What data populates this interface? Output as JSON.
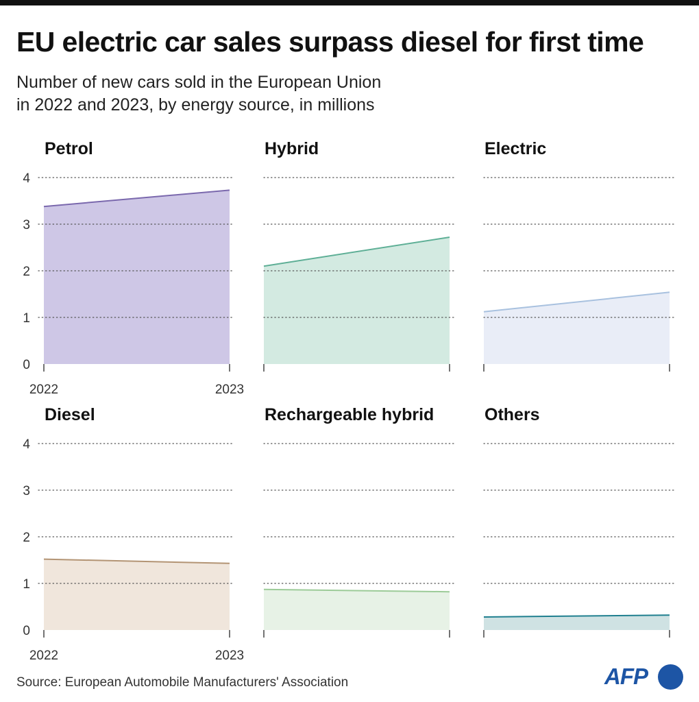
{
  "title": "EU electric car sales surpass diesel for first time",
  "subtitle_line1": "Number of new cars sold in the European Union",
  "subtitle_line2": "in 2022 and 2023, by energy source, in millions",
  "source": "Source: European Automobile Manufacturers' Association",
  "logo_text": "AFP",
  "colors": {
    "accent": "#1d55a5"
  },
  "chart_data": [
    {
      "type": "area",
      "title": "Petrol",
      "x": [
        "2022",
        "2023"
      ],
      "values": [
        3.38,
        3.73
      ],
      "ylim": [
        0,
        4
      ],
      "y_ticks": [
        0,
        1,
        2,
        3,
        4
      ],
      "line_color": "#7a68ad",
      "fill_color": "#cec7e6"
    },
    {
      "type": "area",
      "title": "Hybrid",
      "x": [
        "2022",
        "2023"
      ],
      "values": [
        2.1,
        2.72
      ],
      "ylim": [
        0,
        4
      ],
      "y_ticks": [
        0,
        1,
        2,
        3,
        4
      ],
      "line_color": "#5eaf96",
      "fill_color": "#d3eae1"
    },
    {
      "type": "area",
      "title": "Electric",
      "x": [
        "2022",
        "2023"
      ],
      "values": [
        1.12,
        1.54
      ],
      "ylim": [
        0,
        4
      ],
      "y_ticks": [
        0,
        1,
        2,
        3,
        4
      ],
      "line_color": "#a8c1df",
      "fill_color": "#e9edf7"
    },
    {
      "type": "area",
      "title": "Diesel",
      "x": [
        "2022",
        "2023"
      ],
      "values": [
        1.52,
        1.43
      ],
      "ylim": [
        0,
        4
      ],
      "y_ticks": [
        0,
        1,
        2,
        3,
        4
      ],
      "line_color": "#b39474",
      "fill_color": "#f0e6dc"
    },
    {
      "type": "area",
      "title": "Rechargeable hybrid",
      "x": [
        "2022",
        "2023"
      ],
      "values": [
        0.87,
        0.82
      ],
      "ylim": [
        0,
        4
      ],
      "y_ticks": [
        0,
        1,
        2,
        3,
        4
      ],
      "line_color": "#9ccb98",
      "fill_color": "#e7f2e6"
    },
    {
      "type": "area",
      "title": "Others",
      "x": [
        "2022",
        "2023"
      ],
      "values": [
        0.28,
        0.32
      ],
      "ylim": [
        0,
        4
      ],
      "y_ticks": [
        0,
        1,
        2,
        3,
        4
      ],
      "line_color": "#1f7f8f",
      "fill_color": "#cfe2e3"
    }
  ]
}
